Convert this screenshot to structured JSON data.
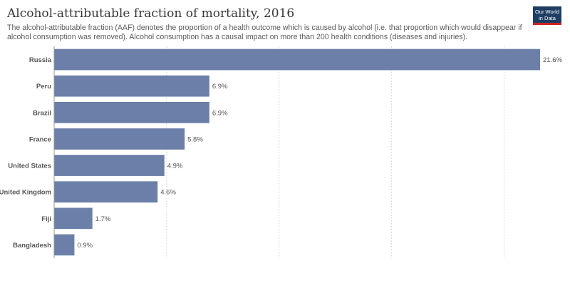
{
  "header": {
    "title": "Alcohol-attributable fraction of mortality, 2016",
    "subtitle": "The alcohol-attributable fraction (AAF) denotes the proportion of a health outcome which is caused by alcohol (i.e. that proportion which would disappear if alcohol consumption was removed). Alcohol consumption has a causal impact on more than 200 health conditions (diseases and injuries)."
  },
  "logo": {
    "line1": "Our World",
    "line2": "in Data"
  },
  "colors": {
    "bar": "#6b7fa8",
    "logo_bg": "#1d3d63",
    "logo_accent": "#ce261e"
  },
  "chart_data": {
    "type": "bar",
    "orientation": "horizontal",
    "categories": [
      "Russia",
      "Peru",
      "Brazil",
      "France",
      "United States",
      "United Kingdom",
      "Fiji",
      "Bangladesh"
    ],
    "values": [
      21.6,
      6.9,
      6.9,
      5.8,
      4.9,
      4.6,
      1.7,
      0.9
    ],
    "value_labels": [
      "21.6%",
      "6.9%",
      "6.9%",
      "5.8%",
      "4.9%",
      "4.6%",
      "1.7%",
      "0.9%"
    ],
    "unit": "%",
    "xlim": [
      0,
      21.6
    ],
    "gridlines": [
      5,
      10,
      15,
      20
    ],
    "grid": true
  }
}
